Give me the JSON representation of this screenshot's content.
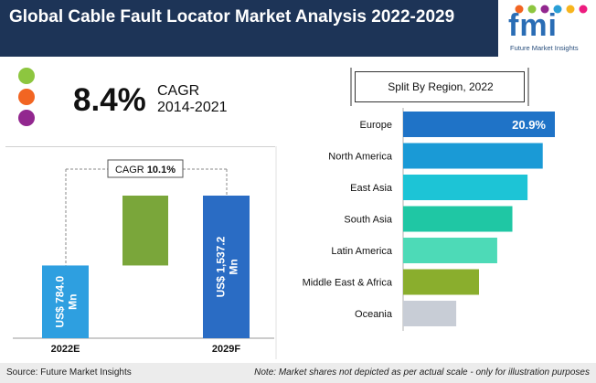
{
  "header": {
    "title": "Global Cable Fault Locator Market Analysis 2022-2029"
  },
  "logo": {
    "text": "fmi",
    "subtitle": "Future Market Insights"
  },
  "cagr": {
    "value": "8.4%",
    "label": "CAGR",
    "period": "2014-2021",
    "dot_colors": [
      "#8dc63f",
      "#f26522",
      "#92278f"
    ]
  },
  "chart_data": [
    {
      "type": "bar",
      "categories": [
        "2022E",
        "2029F"
      ],
      "values": [
        784.0,
        1537.2
      ],
      "bar_labels": [
        "US$ 784.0 Mn",
        "US$ 1,537.2 Mn"
      ],
      "bar_color": "#2e9fe0",
      "bar_color_2": "#2a6cc4",
      "increment_color": "#7aa63a",
      "cagr_label": "CAGR",
      "cagr_value": "10.1%"
    },
    {
      "type": "bar",
      "orientation": "horizontal",
      "title": "Split By Region, 2022",
      "categories": [
        "Europe",
        "North America",
        "East Asia",
        "South Asia",
        "Latin America",
        "Middle East & Africa",
        "Oceania"
      ],
      "relative_values": [
        1.0,
        0.92,
        0.82,
        0.72,
        0.62,
        0.5,
        0.35
      ],
      "colors": [
        "#1f73c7",
        "#1a9ad6",
        "#1dc4d6",
        "#1fc7a4",
        "#4ddab7",
        "#8aae2d",
        "#c8cdd6"
      ],
      "data_labels": [
        "20.9%",
        "",
        "",
        "",
        "",
        "",
        ""
      ]
    }
  ],
  "footer": {
    "source": "Source: Future Market Insights",
    "note": "Note: Market shares not depicted as per actual scale - only for illustration purposes"
  }
}
